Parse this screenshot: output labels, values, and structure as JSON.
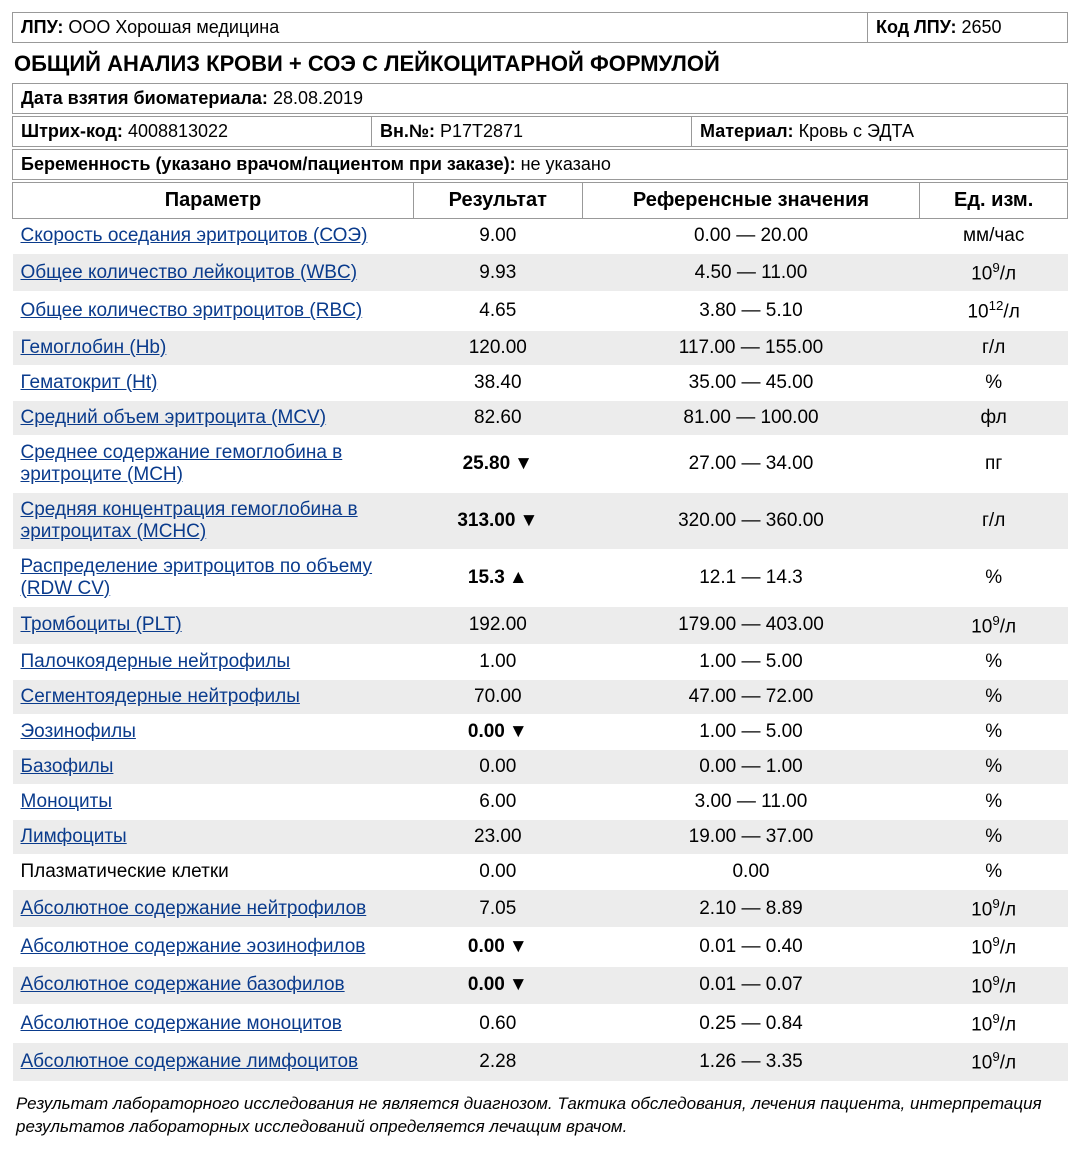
{
  "header": {
    "lpu_label": "ЛПУ:",
    "lpu_value": "ООО Хорошая медицина",
    "kod_label": "Код ЛПУ:",
    "kod_value": "2650",
    "title": "ОБЩИЙ АНАЛИЗ КРОВИ + СОЭ С ЛЕЙКОЦИТАРНОЙ ФОРМУЛОЙ",
    "date_label": "Дата взятия биоматериала:",
    "date_value": "28.08.2019",
    "barcode_label": "Штрих-код:",
    "barcode_value": "4008813022",
    "vn_label": "Вн.№:",
    "vn_value": "Р17Т2871",
    "material_label": "Материал:",
    "material_value": "Кровь с ЭДТА",
    "preg_label": "Беременность (указано врачом/пациентом при заказе):",
    "preg_value": "не указано"
  },
  "table": {
    "columns": [
      "Параметр",
      "Результат",
      "Референсные значения",
      "Ед. изм."
    ],
    "rows": [
      {
        "param": "Скорость оседания эритроцитов (СОЭ)",
        "result": "9.00",
        "flag": "",
        "ref": "0.00 — 20.00",
        "unit": "мм/час",
        "link": true,
        "shade": false
      },
      {
        "param": "Общее количество лейкоцитов (WBC)",
        "result": "9.93",
        "flag": "",
        "ref": "4.50 — 11.00",
        "unit": "10<sup>9</sup>/л",
        "link": true,
        "shade": true
      },
      {
        "param": "Общее количество эритроцитов (RBC)",
        "result": "4.65",
        "flag": "",
        "ref": "3.80 — 5.10",
        "unit": "10<sup>12</sup>/л",
        "link": true,
        "shade": false
      },
      {
        "param": "Гемоглобин (Hb)",
        "result": "120.00",
        "flag": "",
        "ref": "117.00 — 155.00",
        "unit": "г/л",
        "link": true,
        "shade": true
      },
      {
        "param": "Гематокрит (Ht)",
        "result": "38.40",
        "flag": "",
        "ref": "35.00 — 45.00",
        "unit": "%",
        "link": true,
        "shade": false
      },
      {
        "param": "Средний объем эритроцита (MCV)",
        "result": "82.60",
        "flag": "",
        "ref": "81.00 — 100.00",
        "unit": "фл",
        "link": true,
        "shade": true
      },
      {
        "param": "Среднее содержание гемоглобина в эритроците (MCH)",
        "result": "25.80",
        "flag": "down",
        "ref": "27.00 — 34.00",
        "unit": "пг",
        "link": true,
        "shade": false
      },
      {
        "param": "Средняя концентрация гемоглобина в эритроцитах (MCHC)",
        "result": "313.00",
        "flag": "down",
        "ref": "320.00 — 360.00",
        "unit": "г/л",
        "link": true,
        "shade": true
      },
      {
        "param": "Распределение эритроцитов по объему (RDW CV)",
        "result": "15.3",
        "flag": "up",
        "ref": "12.1 — 14.3",
        "unit": "%",
        "link": true,
        "shade": false
      },
      {
        "param": "Тромбоциты (PLT)",
        "result": "192.00",
        "flag": "",
        "ref": "179.00 — 403.00",
        "unit": "10<sup>9</sup>/л",
        "link": true,
        "shade": true
      },
      {
        "param": "Палочкоядерные нейтрофилы",
        "result": "1.00",
        "flag": "",
        "ref": "1.00 — 5.00",
        "unit": "%",
        "link": true,
        "shade": false
      },
      {
        "param": "Сегментоядерные нейтрофилы",
        "result": "70.00",
        "flag": "",
        "ref": "47.00 — 72.00",
        "unit": "%",
        "link": true,
        "shade": true
      },
      {
        "param": "Эозинофилы",
        "result": "0.00",
        "flag": "down",
        "ref": "1.00 — 5.00",
        "unit": "%",
        "link": true,
        "shade": false
      },
      {
        "param": "Базофилы",
        "result": "0.00",
        "flag": "",
        "ref": "0.00 — 1.00",
        "unit": "%",
        "link": true,
        "shade": true
      },
      {
        "param": "Моноциты",
        "result": "6.00",
        "flag": "",
        "ref": "3.00 — 11.00",
        "unit": "%",
        "link": true,
        "shade": false
      },
      {
        "param": "Лимфоциты",
        "result": "23.00",
        "flag": "",
        "ref": "19.00 — 37.00",
        "unit": "%",
        "link": true,
        "shade": true
      },
      {
        "param": "Плазматические клетки",
        "result": "0.00",
        "flag": "",
        "ref": "0.00",
        "unit": "%",
        "link": false,
        "shade": false
      },
      {
        "param": "Абсолютное содержание нейтрофилов",
        "result": "7.05",
        "flag": "",
        "ref": "2.10 — 8.89",
        "unit": "10<sup>9</sup>/л",
        "link": true,
        "shade": true
      },
      {
        "param": "Абсолютное содержание эозинофилов",
        "result": "0.00",
        "flag": "down",
        "ref": "0.01 — 0.40",
        "unit": "10<sup>9</sup>/л",
        "link": true,
        "shade": false
      },
      {
        "param": "Абсолютное содержание базофилов",
        "result": "0.00",
        "flag": "down",
        "ref": "0.01 — 0.07",
        "unit": "10<sup>9</sup>/л",
        "link": true,
        "shade": true
      },
      {
        "param": "Абсолютное содержание моноцитов",
        "result": "0.60",
        "flag": "",
        "ref": "0.25 — 0.84",
        "unit": "10<sup>9</sup>/л",
        "link": true,
        "shade": false
      },
      {
        "param": "Абсолютное содержание лимфоцитов",
        "result": "2.28",
        "flag": "",
        "ref": "1.26 — 3.35",
        "unit": "10<sup>9</sup>/л",
        "link": true,
        "shade": true
      }
    ]
  },
  "footnote": "Результат лабораторного исследования не является диагнозом. Тактика обследования, лечения пациента, интерпретация результатов лабораторных исследований определяется лечащим врачом.",
  "style": {
    "shade_color": "#ececec",
    "border_color": "#999999",
    "link_color": "#0a3b8c",
    "font_family": "Arial",
    "base_fontsize": 18,
    "arrow_up": "▲",
    "arrow_down": "▼"
  }
}
